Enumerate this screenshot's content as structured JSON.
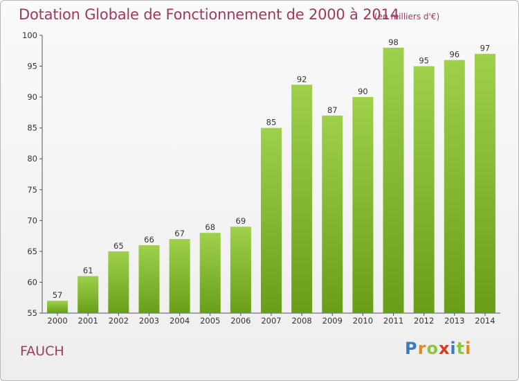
{
  "header": {
    "title": "Dotation Globale de Fonctionnement de 2000 à 2014",
    "unit": "(en milliers d'€)"
  },
  "commune": "FAUCH",
  "logo": {
    "letters": [
      "P",
      "r",
      "o",
      "x",
      "i",
      "t",
      "i"
    ],
    "colors": [
      "#3a7cc4",
      "#e48a1a",
      "#8cc63f",
      "#e2361c",
      "#3a7cc4",
      "#8cc63f",
      "#e48a1a"
    ]
  },
  "chart_data": {
    "type": "bar",
    "title": "Dotation Globale de Fonctionnement de 2000 à 2014",
    "subtitle": "(en milliers d'€)",
    "categories": [
      "2000",
      "2001",
      "2002",
      "2003",
      "2004",
      "2005",
      "2006",
      "2007",
      "2008",
      "2009",
      "2010",
      "2011",
      "2012",
      "2013",
      "2014"
    ],
    "values": [
      57,
      61,
      65,
      66,
      67,
      68,
      69,
      85,
      92,
      87,
      90,
      98,
      95,
      96,
      97
    ],
    "ylim": [
      55,
      100
    ],
    "yticks": [
      55,
      60,
      65,
      70,
      75,
      80,
      85,
      90,
      95,
      100
    ],
    "grid": false,
    "bar_color_top": "#9ed04c",
    "bar_color_bottom": "#6a9e18"
  }
}
